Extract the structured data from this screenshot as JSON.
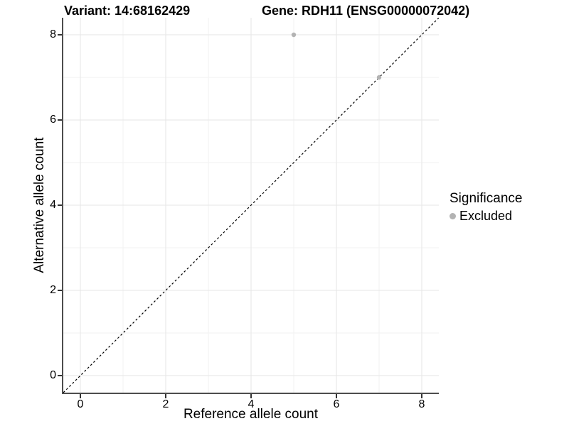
{
  "figure": {
    "title_left": "Variant: 14:68162429",
    "title_right": "Gene: RDH11 (ENSG00000072042)"
  },
  "chart_data": {
    "type": "scatter",
    "title": "Variant: 14:68162429   Gene: RDH11 (ENSG00000072042)",
    "xlabel": "Reference allele count",
    "ylabel": "Alternative allele count",
    "xlim": [
      -0.4,
      8.4
    ],
    "ylim": [
      -0.4,
      8.4
    ],
    "x_ticks": [
      0,
      2,
      4,
      6,
      8
    ],
    "y_ticks": [
      0,
      2,
      4,
      6,
      8
    ],
    "x_minor_ticks": [
      1,
      3,
      5,
      7
    ],
    "y_minor_ticks": [
      1,
      3,
      5,
      7
    ],
    "grid": true,
    "legend_position": "right",
    "reference_line": {
      "type": "identity y=x",
      "style": "dashed",
      "color": "#000000"
    },
    "series": [
      {
        "name": "Excluded",
        "color": "#b3b3b3",
        "points": [
          {
            "x": 5,
            "y": 8
          },
          {
            "x": 7,
            "y": 7
          }
        ]
      }
    ],
    "legend": {
      "title": "Significance",
      "items": [
        {
          "label": "Excluded",
          "color": "#b3b3b3"
        }
      ]
    }
  },
  "colors": {
    "axis_line": "#4d4d4d",
    "tick_mark": "#333333",
    "grid_major": "#e6e6e6",
    "grid_minor": "#f2f2f2",
    "point": "#b3b3b3",
    "diagonal": "#000000",
    "background": "#ffffff"
  }
}
